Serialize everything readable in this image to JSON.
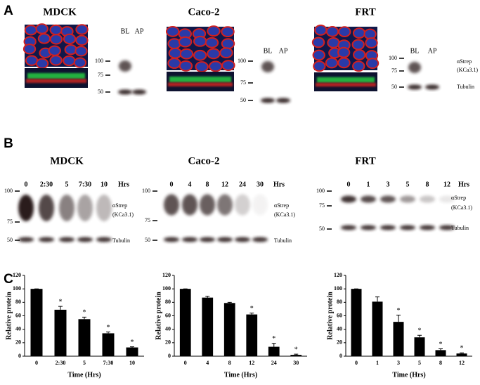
{
  "panels": {
    "a": {
      "label": "A",
      "groups": [
        {
          "title": "MDCK",
          "lanes": [
            "BL",
            "AP"
          ],
          "markers": [
            "100",
            "75",
            "50"
          ]
        },
        {
          "title": "Caco-2",
          "lanes": [
            "BL",
            "AP"
          ],
          "markers": [
            "100",
            "75",
            "50"
          ]
        },
        {
          "title": "FRT",
          "lanes": [
            "BL",
            "AP"
          ],
          "markers": [
            "100",
            "75",
            "50"
          ],
          "antibody": "αStrep",
          "antibody_sub": "(KCa3.1)",
          "loading": "Tubulin"
        }
      ]
    },
    "b": {
      "label": "B",
      "groups": [
        {
          "title": "MDCK",
          "times": [
            "0",
            "2:30",
            "5",
            "7:30",
            "10"
          ],
          "unit": "Hrs",
          "markers": [
            "100",
            "75",
            "50"
          ],
          "antibody": "αStrep",
          "antibody_sub": "(KCa3.1)",
          "loading": "Tubulin"
        },
        {
          "title": "Caco-2",
          "times": [
            "0",
            "4",
            "8",
            "12",
            "24",
            "30"
          ],
          "unit": "Hrs",
          "markers": [
            "100",
            "75",
            "50"
          ],
          "antibody": "αStrep",
          "antibody_sub": "(KCa3.1)",
          "loading": "Tubulin"
        },
        {
          "title": "FRT",
          "times": [
            "0",
            "1",
            "3",
            "5",
            "8",
            "12"
          ],
          "unit": "Hrs",
          "markers": [
            "100",
            "75",
            "50"
          ],
          "antibody": "αStrep",
          "antibody_sub": "(KCa3.1)",
          "loading": "Tubulin"
        }
      ]
    },
    "c": {
      "label": "C"
    }
  },
  "chart_data": [
    {
      "type": "bar",
      "categories": [
        "0",
        "2:30",
        "5",
        "7:30",
        "10"
      ],
      "values": [
        100,
        69,
        55,
        34,
        13
      ],
      "errors": [
        0,
        5,
        3,
        2,
        1
      ],
      "significance": [
        null,
        "*",
        "*",
        "*",
        "*"
      ],
      "color": "#000000",
      "x_label": "Time (Hrs)",
      "y_label": "Relative protein",
      "ylim": [
        0,
        120
      ],
      "yticks": [
        0,
        20,
        40,
        60,
        80,
        100,
        120
      ]
    },
    {
      "type": "bar",
      "categories": [
        "0",
        "4",
        "8",
        "12",
        "24",
        "30"
      ],
      "values": [
        100,
        87,
        79,
        62,
        14,
        2
      ],
      "errors": [
        0,
        2,
        1,
        2,
        5,
        1
      ],
      "significance": [
        null,
        null,
        null,
        "*",
        "*",
        "*"
      ],
      "color": "#000000",
      "x_label": "Time (Hrs)",
      "y_label": "Relative protein",
      "ylim": [
        0,
        120
      ],
      "yticks": [
        0,
        20,
        40,
        60,
        80,
        100,
        120
      ]
    },
    {
      "type": "bar",
      "categories": [
        "0",
        "1",
        "3",
        "5",
        "8",
        "12"
      ],
      "values": [
        100,
        81,
        51,
        28,
        9,
        4
      ],
      "errors": [
        0,
        7,
        10,
        3,
        2,
        1
      ],
      "significance": [
        null,
        null,
        "*",
        "*",
        "*",
        "*"
      ],
      "color": "#000000",
      "x_label": "Time (Hrs)",
      "y_label": "Relative protein",
      "ylim": [
        0,
        120
      ],
      "yticks": [
        0,
        20,
        40,
        60,
        80,
        100,
        120
      ]
    }
  ]
}
